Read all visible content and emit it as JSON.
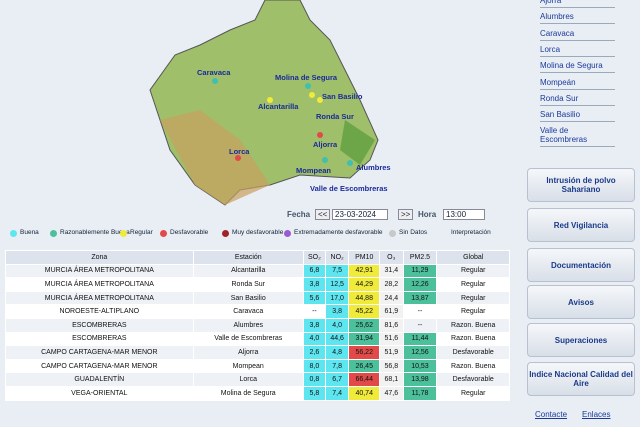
{
  "map": {
    "labels": [
      "Caravaca",
      "Molina de Segura",
      "San Basilio",
      "Alcantarilla",
      "Ronda Sur",
      "Lorca",
      "Aljorra",
      "Alumbres",
      "Mompean",
      "Valle de Escombreras"
    ]
  },
  "controls": {
    "date_label": "Fecha",
    "prev": "<<",
    "date": "23-03-2024",
    "next": ">>",
    "hour_label": "Hora",
    "hour": "13:00"
  },
  "legend": {
    "items": [
      {
        "label": "Buena",
        "color": "#5ee6f0"
      },
      {
        "label": "Razonablemente Buena",
        "color": "#4cc09a"
      },
      {
        "label": "Regular",
        "color": "#f0ea3a"
      },
      {
        "label": "Desfavorable",
        "color": "#e24a4a"
      },
      {
        "label": "Muy desfavorable",
        "color": "#a0222a"
      },
      {
        "label": "Extremadamente desfavorable",
        "color": "#9a5ad0"
      },
      {
        "label": "Sin Datos",
        "color": "#c8c8c8"
      }
    ],
    "help": "Interpretación"
  },
  "table": {
    "header": [
      "Zona",
      "Estación",
      "SO₂",
      "NO₂",
      "PM10",
      "O₃",
      "PM2.5",
      "Global"
    ],
    "rows": [
      [
        "MURCIA ÁREA METROPOLITANA",
        "Alcantarilla",
        "6,8",
        "7,5",
        "42,91",
        "31,4",
        "11,29",
        "Regular"
      ],
      [
        "MURCIA ÁREA METROPOLITANA",
        "Ronda Sur",
        "3,8",
        "12,5",
        "44,29",
        "28,2",
        "12,26",
        "Regular"
      ],
      [
        "MURCIA ÁREA METROPOLITANA",
        "San Basilio",
        "5,6",
        "17,0",
        "44,88",
        "24,4",
        "13,87",
        "Regular"
      ],
      [
        "NOROESTE-ALTIPLANO",
        "Caravaca",
        "--",
        "3,8",
        "45,22",
        "61,9",
        "--",
        "Regular"
      ],
      [
        "ESCOMBRERAS",
        "Alumbres",
        "3,8",
        "4,0",
        "25,62",
        "81,6",
        "--",
        "Razon. Buena"
      ],
      [
        "ESCOMBRERAS",
        "Valle de Escombreras",
        "4,0",
        "44,6",
        "31,94",
        "51,6",
        "11,44",
        "Razon. Buena"
      ],
      [
        "CAMPO CARTAGENA-MAR MENOR",
        "Aljorra",
        "2,6",
        "4,8",
        "56,22",
        "51,9",
        "12,56",
        "Desfavorable"
      ],
      [
        "CAMPO CARTAGENA-MAR MENOR",
        "Mompean",
        "8,0",
        "7,8",
        "26,45",
        "56,8",
        "10,53",
        "Razon. Buena"
      ],
      [
        "GUADALENTÍN",
        "Lorca",
        "0,8",
        "6,7",
        "66,44",
        "68,1",
        "13,98",
        "Desfavorable"
      ],
      [
        "VEGA-ORIENTAL",
        "Molina de Segura",
        "5,8",
        "7,4",
        "40,74",
        "47,6",
        "11,78",
        "Regular"
      ]
    ],
    "pm10_colors": [
      "#f0ea3a",
      "#f0ea3a",
      "#f0ea3a",
      "#f0ea3a",
      "#4cc09a",
      "#4cc09a",
      "#e24a4a",
      "#4cc09a",
      "#e24a4a",
      "#f0ea3a"
    ]
  },
  "sidebar": {
    "stations": [
      "Ajorra",
      "Alumbres",
      "Caravaca",
      "Lorca",
      "Molina de Segura",
      "Mompeán",
      "Ronda Sur",
      "San Basilio",
      "Valle de Escombreras"
    ],
    "buttons": [
      "Intrusión de polvo Sahariano",
      "Red Vigilancia",
      "Documentación",
      "Avisos",
      "Superaciones",
      "Indice Nacional Calidad del Aire"
    ]
  },
  "footer": [
    "Contacte",
    "Enlaces"
  ]
}
